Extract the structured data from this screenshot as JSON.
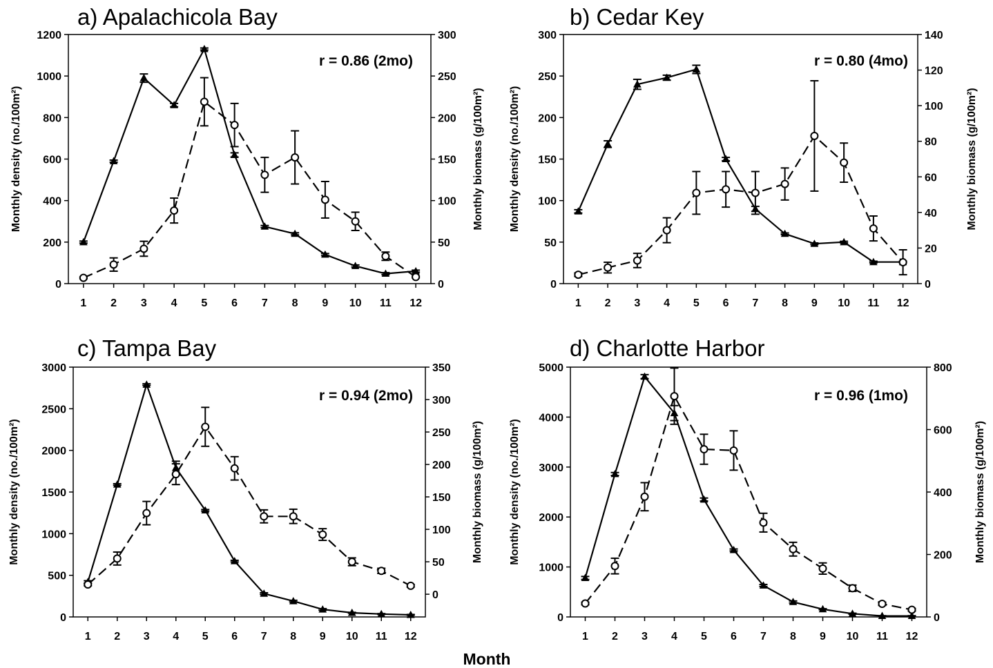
{
  "figure": {
    "xlabel": "Month"
  },
  "chart_data": [
    {
      "type": "line",
      "title": "a) Apalachicola Bay",
      "annotation": "r = 0.86 (2mo)",
      "xlabel": "Month",
      "ylabel": "Monthly density (no./100m²)",
      "ylabel_right": "Monthly biomass (g/100m²)",
      "x": [
        1,
        2,
        3,
        4,
        5,
        6,
        7,
        8,
        9,
        10,
        11,
        12
      ],
      "ylim": [
        0,
        1200
      ],
      "yticks": [
        0,
        200,
        400,
        600,
        800,
        1000,
        1200
      ],
      "ylim_right": [
        0,
        300
      ],
      "yticks_right": [
        0,
        50,
        100,
        150,
        200,
        250,
        300
      ],
      "series": [
        {
          "axis": "left",
          "style": "solid",
          "marker": "filled-triangle",
          "values": [
            200,
            590,
            990,
            860,
            1130,
            620,
            275,
            240,
            140,
            85,
            48,
            60
          ],
          "errors": [
            5,
            5,
            20,
            8,
            5,
            10,
            5,
            5,
            5,
            5,
            5,
            5
          ]
        },
        {
          "axis": "right",
          "style": "dashed",
          "marker": "open-circle",
          "values": [
            7,
            23,
            42,
            88,
            219,
            191,
            131,
            152,
            101,
            75,
            33,
            8
          ],
          "errors": [
            1,
            8,
            9,
            15,
            29,
            26,
            21,
            32,
            22,
            11,
            5,
            1
          ]
        }
      ]
    },
    {
      "type": "line",
      "title": "b) Cedar Key",
      "annotation": "r = 0.80 (4mo)",
      "xlabel": "Month",
      "ylabel": "Monthly density (no./100m²)",
      "ylabel_right": "Monthly biomass (g/100m²)",
      "x": [
        1,
        2,
        3,
        4,
        5,
        6,
        7,
        8,
        9,
        10,
        11,
        12
      ],
      "ylim": [
        0,
        300
      ],
      "yticks": [
        0,
        50,
        100,
        150,
        200,
        250,
        300
      ],
      "ylim_right": [
        0,
        140
      ],
      "yticks_right": [
        0,
        20,
        40,
        60,
        80,
        100,
        120,
        140
      ],
      "series": [
        {
          "axis": "left",
          "style": "solid",
          "marker": "filled-triangle",
          "values": [
            87,
            168,
            240,
            248,
            258,
            150,
            90,
            60,
            48,
            50,
            26,
            26
          ],
          "errors": [
            2,
            4,
            6,
            3,
            5,
            2,
            3,
            1,
            1,
            1,
            1,
            1
          ]
        },
        {
          "axis": "right",
          "style": "dashed",
          "marker": "open-circle",
          "values": [
            5,
            9,
            13,
            30,
            51,
            53,
            51,
            56,
            83,
            68,
            31,
            12
          ],
          "errors": [
            1,
            3,
            4,
            7,
            12,
            10,
            12,
            9,
            31,
            11,
            7,
            7
          ]
        }
      ]
    },
    {
      "type": "line",
      "title": "c) Tampa Bay",
      "annotation": "r = 0.94 (2mo)",
      "xlabel": "Month",
      "ylabel": "Monthly density (no./100m²)",
      "ylabel_right": "Monthly biomass (g/100m²)",
      "x": [
        1,
        2,
        3,
        4,
        5,
        6,
        7,
        8,
        9,
        10,
        11,
        12
      ],
      "ylim": [
        0,
        3000
      ],
      "yticks": [
        0,
        500,
        1000,
        1500,
        2000,
        2500,
        3000
      ],
      "ylim_right": [
        -35,
        350
      ],
      "yticks_right": [
        0,
        50,
        100,
        150,
        200,
        250,
        300,
        350
      ],
      "series": [
        {
          "axis": "left",
          "style": "solid",
          "marker": "filled-triangle",
          "values": [
            420,
            1590,
            2790,
            1790,
            1280,
            670,
            280,
            190,
            90,
            50,
            35,
            25
          ],
          "errors": [
            15,
            10,
            10,
            80,
            10,
            10,
            10,
            10,
            10,
            5,
            5,
            5
          ]
        },
        {
          "axis": "right",
          "style": "dashed",
          "marker": "open-circle",
          "values": [
            15,
            55,
            125,
            185,
            258,
            194,
            120,
            120,
            92,
            50,
            36,
            13
          ],
          "errors": [
            2,
            10,
            18,
            16,
            30,
            18,
            10,
            11,
            9,
            6,
            4,
            2
          ]
        }
      ]
    },
    {
      "type": "line",
      "title": "d) Charlotte Harbor",
      "annotation": "r = 0.96 (1mo)",
      "xlabel": "Month",
      "ylabel": "Monthly density (no./100m²)",
      "ylabel_right": "Monthly biomass (g/100m²)",
      "x": [
        1,
        2,
        3,
        4,
        5,
        6,
        7,
        8,
        9,
        10,
        11,
        12
      ],
      "ylim": [
        0,
        5000
      ],
      "yticks": [
        0,
        1000,
        2000,
        3000,
        4000,
        5000
      ],
      "ylim_right": [
        0,
        800
      ],
      "yticks_right": [
        0,
        200,
        400,
        600,
        800
      ],
      "series": [
        {
          "axis": "left",
          "style": "solid",
          "marker": "filled-triangle",
          "values": [
            780,
            2860,
            4810,
            4080,
            2350,
            1340,
            630,
            300,
            155,
            65,
            20,
            20
          ],
          "errors": [
            30,
            30,
            40,
            150,
            30,
            20,
            20,
            20,
            10,
            10,
            5,
            5
          ]
        },
        {
          "axis": "right",
          "style": "dashed",
          "marker": "open-circle",
          "values": [
            43,
            163,
            385,
            707,
            537,
            533,
            302,
            217,
            155,
            92,
            42,
            23
          ],
          "errors": [
            4,
            25,
            45,
            90,
            48,
            63,
            30,
            22,
            18,
            10,
            5,
            4
          ]
        }
      ]
    }
  ]
}
